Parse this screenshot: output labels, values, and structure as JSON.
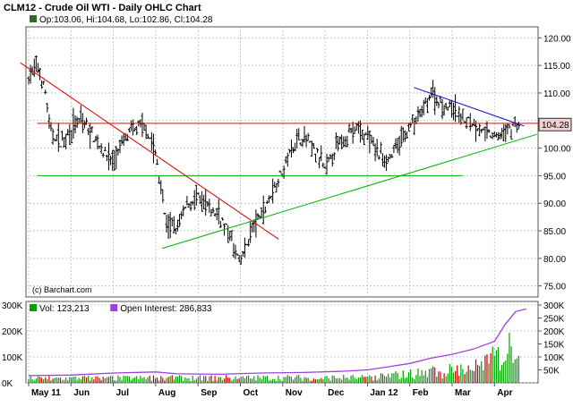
{
  "header": {
    "title": "CLM12 - Crude Oil WTI - Daily OHLC Chart",
    "ohlc": "Op:103.06, Hi:104.68, Lo:102.86, Cl:104.28"
  },
  "watermark": "(c) Barchart.com",
  "colors": {
    "price_bar": "#000000",
    "resistance_line": "#ff0000",
    "support_line": "#00b000",
    "downtrend_line": "#e00000",
    "wedge_upper": "#0000cc",
    "uptrend_line": "#00b000",
    "volume_up": "#00a000",
    "volume_down": "#cc0000",
    "open_interest": "#a040e0",
    "last_price_box": "#f0d0d0"
  },
  "chart_data": [
    {
      "type": "ohlc",
      "x_axis_labels": [
        "May 11",
        "Jun",
        "Jul",
        "Aug",
        "Sep",
        "Oct",
        "Nov",
        "Dec",
        "Jan 12",
        "Feb",
        "Mar",
        "Apr"
      ],
      "ylim": [
        73,
        122
      ],
      "y_ticks": [
        "120.00",
        "115.00",
        "110.00",
        "105.00",
        "100.00",
        "95.00",
        "90.00",
        "85.00",
        "80.00",
        "75.00"
      ],
      "last_price": "104.28",
      "close_path": [
        [
          0,
          113
        ],
        [
          0.4,
          114.8
        ],
        [
          0.8,
          110
        ],
        [
          1.0,
          103
        ],
        [
          1.5,
          101
        ],
        [
          2,
          103.5
        ],
        [
          2.5,
          105
        ],
        [
          3,
          102.5
        ],
        [
          3.5,
          99.5
        ],
        [
          4,
          97.5
        ],
        [
          4.5,
          101.5
        ],
        [
          5,
          103.5
        ],
        [
          5.5,
          104
        ],
        [
          6,
          99
        ],
        [
          6.5,
          86
        ],
        [
          7,
          85.5
        ],
        [
          7.5,
          90
        ],
        [
          8,
          91
        ],
        [
          8.5,
          89
        ],
        [
          9,
          88
        ],
        [
          9.5,
          84
        ],
        [
          10,
          79
        ],
        [
          10.5,
          85
        ],
        [
          11,
          88
        ],
        [
          11.5,
          92
        ],
        [
          12,
          96
        ],
        [
          12.5,
          101
        ],
        [
          13,
          102
        ],
        [
          13.5,
          99.5
        ],
        [
          14,
          96
        ],
        [
          14.5,
          100
        ],
        [
          15,
          102.5
        ],
        [
          15.5,
          103.5
        ],
        [
          16,
          102
        ],
        [
          16.5,
          99
        ],
        [
          17,
          98
        ],
        [
          17.5,
          101
        ],
        [
          18,
          104
        ],
        [
          18.5,
          106
        ],
        [
          19,
          110
        ],
        [
          19.5,
          108
        ],
        [
          20,
          107
        ],
        [
          20.5,
          105.5
        ],
        [
          21,
          104.5
        ],
        [
          21.5,
          103
        ],
        [
          22,
          102
        ],
        [
          22.5,
          103
        ],
        [
          23,
          104.3
        ]
      ],
      "lines": {
        "resistance": 104.5,
        "support": 95,
        "downtrend": [
          [
            -0.4,
            115.5
          ],
          [
            11.8,
            83.5
          ]
        ],
        "wedge_upper": [
          [
            18.2,
            111
          ],
          [
            23.4,
            104
          ]
        ],
        "uptrend": [
          [
            6.3,
            81.8
          ],
          [
            24,
            102.5
          ]
        ]
      }
    },
    {
      "type": "bar",
      "legend": [
        {
          "label": "Vol: 123,213",
          "color": "#00a000"
        },
        {
          "label": "Open Interest: 286,833",
          "color": "#a040e0"
        }
      ],
      "left_ticks": [
        "300K",
        "200K",
        "100K",
        "0K"
      ],
      "right_ticks": [
        "300K",
        "250K",
        "200K",
        "150K",
        "100K",
        "50K"
      ],
      "volume_envelope": [
        [
          0,
          25
        ],
        [
          16,
          30
        ],
        [
          18,
          50
        ],
        [
          20,
          70
        ],
        [
          21.5,
          100
        ],
        [
          22.5,
          170
        ],
        [
          23.2,
          270
        ],
        [
          24,
          230
        ]
      ],
      "open_interest": [
        [
          0,
          28
        ],
        [
          2,
          30
        ],
        [
          4,
          38
        ],
        [
          6,
          42
        ],
        [
          7,
          35
        ],
        [
          9,
          33
        ],
        [
          11,
          38
        ],
        [
          13,
          40
        ],
        [
          15,
          45
        ],
        [
          16,
          50
        ],
        [
          17,
          62
        ],
        [
          18,
          75
        ],
        [
          19,
          95
        ],
        [
          20,
          110
        ],
        [
          21,
          130
        ],
        [
          22,
          160
        ],
        [
          22.5,
          225
        ],
        [
          23,
          275
        ],
        [
          23.5,
          285
        ]
      ]
    }
  ]
}
